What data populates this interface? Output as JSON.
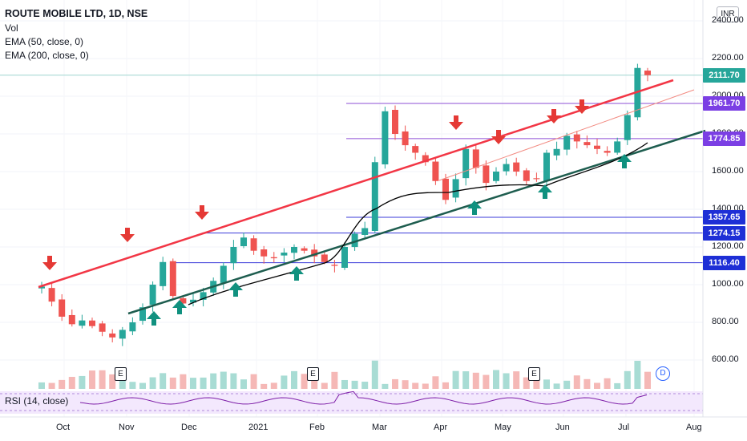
{
  "header": {
    "title": "ROUTE MOBILE LTD, 1D, NSE",
    "indicators": [
      "Vol",
      "EMA (50, close, 0)",
      "EMA (200, close, 0)"
    ]
  },
  "currency_badge": "INR",
  "rsi_label": "RSI (14, close)",
  "earnings_badges": [
    "E",
    "E",
    "E"
  ],
  "dividend_badge": "D",
  "colors": {
    "up": "#26a69a",
    "down": "#ef5350",
    "resistance": "#f23645",
    "support": "#1e5d4f",
    "level": "#3b3bd9",
    "purple": "#8e4fd6",
    "ema": "#000000",
    "arrow_up": "#10917f",
    "arrow_down": "#e53935"
  },
  "chart_data": {
    "type": "candlestick",
    "xlabel": "",
    "ylabel": "",
    "ylim": [
      510,
      2460
    ],
    "y_ticks": [
      "2400.00",
      "2200.00",
      "2000.00",
      "1800.00",
      "1600.00",
      "1400.00",
      "1200.00",
      "1000.00",
      "800.00",
      "600.00"
    ],
    "x_ticks": [
      "Oct",
      "Nov",
      "Dec",
      "2021",
      "Feb",
      "Mar",
      "Apr",
      "May",
      "Jun",
      "Jul",
      "Aug"
    ],
    "price_labels": [
      {
        "value": "2111.70",
        "kind": "last"
      },
      {
        "value": "1961.70",
        "kind": "purple"
      },
      {
        "value": "1774.85",
        "kind": "purple"
      },
      {
        "value": "1357.65",
        "kind": "blue"
      },
      {
        "value": "1274.15",
        "kind": "blue"
      },
      {
        "value": "1116.40",
        "kind": "blue"
      }
    ],
    "close_series": [
      990,
      910,
      830,
      790,
      810,
      780,
      750,
      720,
      760,
      800,
      880,
      1000,
      1120,
      940,
      900,
      920,
      960,
      1020,
      1100,
      1200,
      1250,
      1180,
      1150,
      1140,
      1170,
      1200,
      1180,
      1150,
      1120,
      1100,
      1200,
      1270,
      1300,
      1650,
      1920,
      1800,
      1740,
      1700,
      1650,
      1550,
      1450,
      1560,
      1720,
      1620,
      1540,
      1600,
      1640,
      1600,
      1550,
      1560,
      1700,
      1720,
      1790,
      1760,
      1740,
      1720,
      1700,
      1760,
      1900,
      2150,
      2111.7
    ],
    "volume_note": "volume bars shown along bottom of price pane",
    "events": [
      "resistance trendline",
      "support trendline",
      "EMA 50"
    ]
  }
}
